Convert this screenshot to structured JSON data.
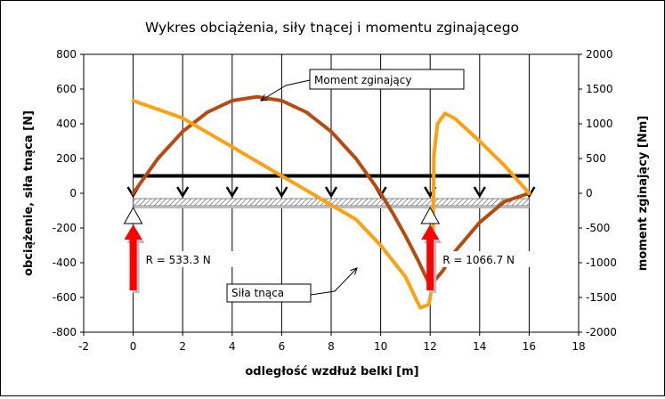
{
  "chart_data": {
    "type": "line",
    "title": "Wykres obciążenia, siły tnącej i momentu zginającego",
    "xlabel": "odległość wzdłuż belki [m]",
    "ylabel": "obciążenie, siła tnąca [N]",
    "y2label": "moment zginający [Nm]",
    "xlim": [
      -2,
      18
    ],
    "ylim": [
      -800,
      800
    ],
    "y2lim": [
      -2000,
      2000
    ],
    "x_ticks": [
      -2,
      0,
      2,
      4,
      6,
      8,
      10,
      12,
      14,
      16,
      18
    ],
    "y_ticks": [
      -800,
      -600,
      -400,
      -200,
      0,
      200,
      400,
      600,
      800
    ],
    "y2_ticks": [
      -2000,
      -1500,
      -1000,
      -500,
      0,
      500,
      1000,
      1500,
      2000
    ],
    "vertical_grid_x": [
      0,
      2,
      4,
      6,
      8,
      10,
      12,
      14,
      16
    ],
    "horizontal_grid": false,
    "series": [
      {
        "name": "Moment zginający",
        "axis": "right",
        "color": "#b84a10",
        "x": [
          0,
          1,
          2,
          3,
          4,
          5,
          6,
          7,
          8,
          9,
          10,
          10.5,
          11,
          11.5,
          12,
          12.5,
          13,
          14,
          15,
          16
        ],
        "y": [
          0,
          500,
          889,
          1167,
          1333,
          1389,
          1333,
          1167,
          889,
          500,
          0,
          -292,
          -611,
          -958,
          -1333,
          -1120,
          -840,
          -420,
          -120,
          0
        ]
      },
      {
        "name": "Siła tnąca",
        "axis": "left",
        "color": "#ffa010",
        "x": [
          0,
          1,
          2,
          3,
          4,
          5,
          6,
          7,
          8,
          9,
          10,
          11,
          11.6,
          11.95,
          12.1,
          12.15,
          12.3,
          12.6,
          13,
          14,
          15,
          16
        ],
        "y": [
          533,
          483,
          433,
          350,
          267,
          183,
          100,
          17,
          -67,
          -150,
          -300,
          -480,
          -660,
          -640,
          -520,
          220,
          400,
          460,
          430,
          300,
          160,
          0
        ]
      },
      {
        "name": "obciążenie",
        "axis": "left",
        "color": "#000000",
        "x": [
          0,
          16
        ],
        "y": [
          100,
          100
        ]
      }
    ],
    "load_arrows_x": [
      0,
      2,
      4,
      6,
      8,
      10,
      12,
      14,
      16
    ],
    "beam_x": [
      0,
      16
    ],
    "supports": [
      {
        "x": 0,
        "label": "R = 533.3 N"
      },
      {
        "x": 12,
        "label": "R = 1066.7 N"
      }
    ],
    "annotations": [
      {
        "text": "Moment zginający",
        "target": "Moment zginający"
      },
      {
        "text": "Siła tnąca",
        "target": "Siła tnąca"
      }
    ],
    "legend": "none"
  }
}
